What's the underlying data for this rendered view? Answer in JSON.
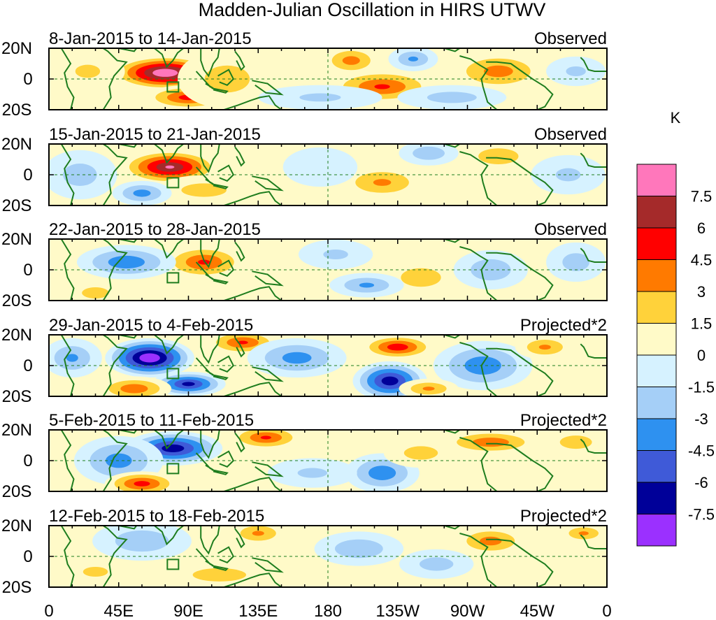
{
  "chart_data": {
    "type": "heatmap",
    "title": "Madden-Julian Oscillation in HIRS UTWV",
    "colorbar": {
      "unit": "K",
      "levels": [
        "7.5",
        "6",
        "4.5",
        "3",
        "1.5",
        "0",
        "-1.5",
        "-3",
        "-4.5",
        "-6",
        "-7.5"
      ],
      "colors": [
        "#ff77bb",
        "#a52a2a",
        "#ff0000",
        "#ff7a00",
        "#ffd23a",
        "#fffac8",
        "#d6f2ff",
        "#a5cff7",
        "#2e91f0",
        "#3f5ad8",
        "#000099",
        "#9b30ff"
      ]
    },
    "xaxis": {
      "ticks": [
        "0",
        "45E",
        "90E",
        "135E",
        "180",
        "135W",
        "90W",
        "45W",
        "0"
      ],
      "range": [
        0,
        360
      ]
    },
    "yaxis": {
      "ticks": [
        "20N",
        "0",
        "20S"
      ],
      "range": [
        -20,
        20
      ]
    },
    "panels": [
      {
        "period": "8-Jan-2015 to 14-Jan-2015",
        "status": "Observed",
        "features": [
          {
            "lon": 75,
            "lat": 4,
            "value": 9.0,
            "slon": 22,
            "slat": 7
          },
          {
            "lon": 90,
            "lat": -12,
            "value": 5.0,
            "slon": 18,
            "slat": 5
          },
          {
            "lon": 115,
            "lat": 0,
            "value": 2.0,
            "slon": 20,
            "slat": 12
          },
          {
            "lon": 215,
            "lat": -5,
            "value": 4.5,
            "slon": 22,
            "slat": 7
          },
          {
            "lon": 195,
            "lat": 12,
            "value": 3.5,
            "slon": 12,
            "slat": 6
          },
          {
            "lon": 290,
            "lat": 5,
            "value": 3.5,
            "slon": 20,
            "slat": 8
          },
          {
            "lon": 235,
            "lat": 13,
            "value": -3.0,
            "slon": 10,
            "slat": 5
          },
          {
            "lon": 175,
            "lat": -12,
            "value": -1.5,
            "slon": 25,
            "slat": 5
          },
          {
            "lon": 260,
            "lat": -12,
            "value": -2.0,
            "slon": 22,
            "slat": 5
          },
          {
            "lon": 25,
            "lat": 5,
            "value": 1.5,
            "slon": 15,
            "slat": 8
          },
          {
            "lon": 340,
            "lat": 5,
            "value": -1.5,
            "slon": 12,
            "slat": 6
          }
        ]
      },
      {
        "period": "15-Jan-2015 to 21-Jan-2015",
        "status": "Observed",
        "features": [
          {
            "lon": 78,
            "lat": 5,
            "value": 7.5,
            "slon": 20,
            "slat": 7
          },
          {
            "lon": 100,
            "lat": -10,
            "value": 2.0,
            "slon": 20,
            "slat": 6
          },
          {
            "lon": 215,
            "lat": -5,
            "value": 3.0,
            "slon": 18,
            "slat": 7
          },
          {
            "lon": 290,
            "lat": 12,
            "value": 2.5,
            "slon": 15,
            "slat": 6
          },
          {
            "lon": 20,
            "lat": 0,
            "value": -2.0,
            "slon": 15,
            "slat": 10
          },
          {
            "lon": 60,
            "lat": -12,
            "value": -3.5,
            "slon": 12,
            "slat": 5
          },
          {
            "lon": 245,
            "lat": 14,
            "value": -2.5,
            "slon": 12,
            "slat": 5
          },
          {
            "lon": 335,
            "lat": 0,
            "value": -1.5,
            "slon": 15,
            "slat": 8
          },
          {
            "lon": 175,
            "lat": 5,
            "value": -1.0,
            "slon": 15,
            "slat": 8
          }
        ]
      },
      {
        "period": "22-Jan-2015 to 28-Jan-2015",
        "status": "Observed",
        "features": [
          {
            "lon": 100,
            "lat": 5,
            "value": 4.5,
            "slon": 17,
            "slat": 7
          },
          {
            "lon": 50,
            "lat": 5,
            "value": -4.0,
            "slon": 20,
            "slat": 7
          },
          {
            "lon": 30,
            "lat": -15,
            "value": 2.0,
            "slon": 12,
            "slat": 5
          },
          {
            "lon": 240,
            "lat": -5,
            "value": 2.5,
            "slon": 15,
            "slat": 7
          },
          {
            "lon": 185,
            "lat": 10,
            "value": -1.5,
            "slon": 15,
            "slat": 6
          },
          {
            "lon": 205,
            "lat": -10,
            "value": -3.0,
            "slon": 15,
            "slat": 5
          },
          {
            "lon": 285,
            "lat": 0,
            "value": -2.5,
            "slon": 15,
            "slat": 8
          },
          {
            "lon": 340,
            "lat": 5,
            "value": -2.0,
            "slon": 12,
            "slat": 8
          }
        ]
      },
      {
        "period": "29-Jan-2015 to 4-Feb-2015",
        "status": "Projected*2",
        "features": [
          {
            "lon": 65,
            "lat": 5,
            "value": -9.0,
            "slon": 18,
            "slat": 8
          },
          {
            "lon": 90,
            "lat": -12,
            "value": -6.5,
            "slon": 15,
            "slat": 5
          },
          {
            "lon": 55,
            "lat": -15,
            "value": 4.0,
            "slon": 15,
            "slat": 5
          },
          {
            "lon": 125,
            "lat": 15,
            "value": 4.5,
            "slon": 15,
            "slat": 5
          },
          {
            "lon": 225,
            "lat": 12,
            "value": 5.5,
            "slon": 15,
            "slat": 5
          },
          {
            "lon": 220,
            "lat": -10,
            "value": -7.0,
            "slon": 15,
            "slat": 8
          },
          {
            "lon": 160,
            "lat": 5,
            "value": -3.5,
            "slon": 20,
            "slat": 8
          },
          {
            "lon": 280,
            "lat": 0,
            "value": -4.0,
            "slon": 20,
            "slat": 10
          },
          {
            "lon": 15,
            "lat": 5,
            "value": -3.0,
            "slon": 12,
            "slat": 8
          },
          {
            "lon": 320,
            "lat": 12,
            "value": 3.0,
            "slon": 12,
            "slat": 5
          },
          {
            "lon": 245,
            "lat": -15,
            "value": 3.0,
            "slon": 12,
            "slat": 4
          }
        ]
      },
      {
        "period": "5-Feb-2015 to 11-Feb-2015",
        "status": "Projected*2",
        "features": [
          {
            "lon": 80,
            "lat": 8,
            "value": -7.0,
            "slon": 20,
            "slat": 7
          },
          {
            "lon": 45,
            "lat": 0,
            "value": -3.5,
            "slon": 18,
            "slat": 10
          },
          {
            "lon": 60,
            "lat": -15,
            "value": 5.0,
            "slon": 15,
            "slat": 5
          },
          {
            "lon": 140,
            "lat": 15,
            "value": 4.5,
            "slon": 15,
            "slat": 5
          },
          {
            "lon": 285,
            "lat": 12,
            "value": 4.0,
            "slon": 20,
            "slat": 5
          },
          {
            "lon": 215,
            "lat": -8,
            "value": -4.0,
            "slon": 15,
            "slat": 8
          },
          {
            "lon": 340,
            "lat": 12,
            "value": 2.5,
            "slon": 12,
            "slat": 5
          },
          {
            "lon": 240,
            "lat": 5,
            "value": 2.0,
            "slon": 15,
            "slat": 6
          },
          {
            "lon": 170,
            "lat": -8,
            "value": -1.5,
            "slon": 18,
            "slat": 6
          }
        ]
      },
      {
        "period": "12-Feb-2015 to 18-Feb-2015",
        "status": "Projected*2",
        "features": [
          {
            "lon": 60,
            "lat": 10,
            "value": -2.5,
            "slon": 20,
            "slat": 8
          },
          {
            "lon": 110,
            "lat": -12,
            "value": 2.5,
            "slon": 20,
            "slat": 5
          },
          {
            "lon": 135,
            "lat": 15,
            "value": 3.0,
            "slon": 12,
            "slat": 5
          },
          {
            "lon": 285,
            "lat": 10,
            "value": 3.5,
            "slon": 15,
            "slat": 6
          },
          {
            "lon": 345,
            "lat": 15,
            "value": 3.0,
            "slon": 10,
            "slat": 4
          },
          {
            "lon": 200,
            "lat": 5,
            "value": -2.5,
            "slon": 18,
            "slat": 7
          },
          {
            "lon": 250,
            "lat": -5,
            "value": -2.0,
            "slon": 15,
            "slat": 6
          },
          {
            "lon": 30,
            "lat": -10,
            "value": 1.5,
            "slon": 15,
            "slat": 6
          }
        ]
      }
    ]
  }
}
